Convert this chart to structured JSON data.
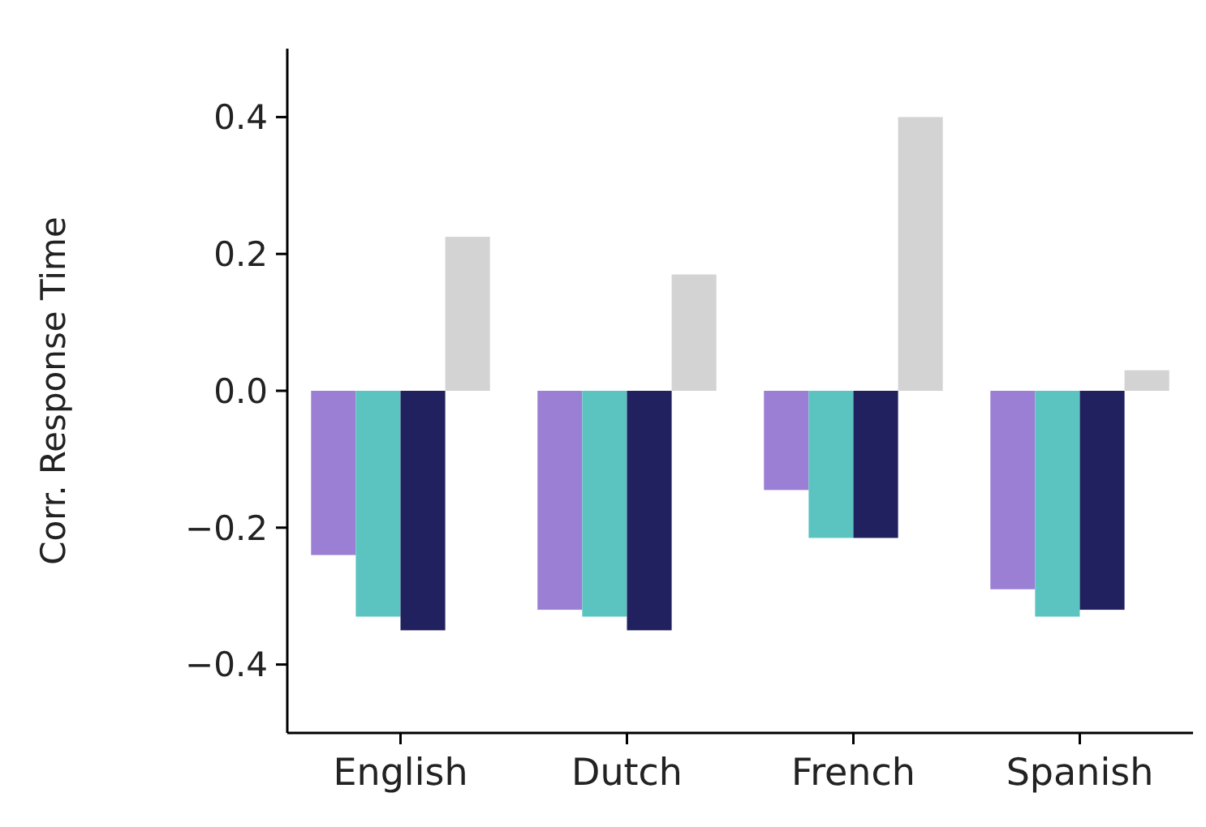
{
  "chart_data": {
    "type": "bar",
    "ylabel": "Corr. Response Time",
    "categories": [
      "English",
      "Dutch",
      "French",
      "Spanish"
    ],
    "series": [
      {
        "color": "#9b7fd4",
        "values": [
          -0.24,
          -0.32,
          -0.145,
          -0.29
        ]
      },
      {
        "color": "#5bc4c0",
        "values": [
          -0.33,
          -0.33,
          -0.215,
          -0.33
        ]
      },
      {
        "color": "#20215e",
        "values": [
          -0.35,
          -0.35,
          -0.215,
          -0.32
        ]
      },
      {
        "color": "#d3d3d3",
        "values": [
          0.225,
          0.17,
          0.4,
          0.03
        ]
      }
    ],
    "ylim": [
      -0.5,
      0.5
    ],
    "yticks": [
      {
        "value": -0.4,
        "label": "−0.4"
      },
      {
        "value": -0.2,
        "label": "−0.2"
      },
      {
        "value": 0,
        "label": "0.0"
      },
      {
        "value": 0.2,
        "label": "0.2"
      },
      {
        "value": 0.4,
        "label": "0.4"
      }
    ],
    "grid": false
  }
}
